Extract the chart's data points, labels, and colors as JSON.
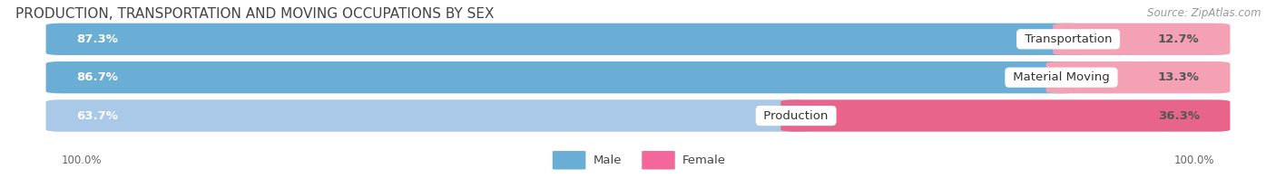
{
  "title": "PRODUCTION, TRANSPORTATION AND MOVING OCCUPATIONS BY SEX",
  "source": "Source: ZipAtlas.com",
  "categories": [
    "Transportation",
    "Material Moving",
    "Production"
  ],
  "male_values": [
    87.3,
    86.7,
    63.7
  ],
  "female_values": [
    12.7,
    13.3,
    36.3
  ],
  "male_colors": [
    "#6aaed6",
    "#6aaed6",
    "#aac8e8"
  ],
  "female_colors": [
    "#f4a0b5",
    "#f4a0b5",
    "#e8648a"
  ],
  "bar_bg_color": "#e8edf2",
  "label_100_left": "100.0%",
  "label_100_right": "100.0%",
  "title_fontsize": 11,
  "source_fontsize": 8.5,
  "bar_label_fontsize": 9.5,
  "category_label_fontsize": 9.5,
  "legend_male_color": "#6aaed6",
  "legend_female_color": "#f4679a"
}
